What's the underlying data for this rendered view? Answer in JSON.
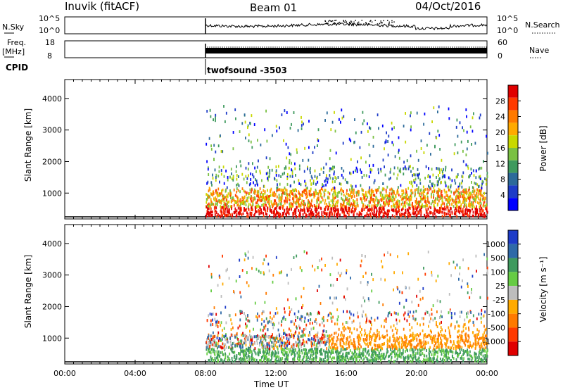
{
  "header": {
    "station": "Inuvik (fitACF)",
    "beam": "Beam 01",
    "date": "04/Oct/2016"
  },
  "top_panels": {
    "nsky_label": "N.Sky",
    "nsky_ticks": [
      "10^5",
      "10^0"
    ],
    "nsearch_label": "N.Search",
    "freq_label": "Freq.",
    "freq_unit": "[MHz]",
    "freq_ticks": [
      "18",
      "8"
    ],
    "nave_label": "Nave",
    "nave_ticks": [
      "60",
      "0"
    ],
    "cpid_label": "CPID",
    "cpid_value": "twofsound -3503"
  },
  "chart_data": [
    {
      "type": "heatmap",
      "panel": "power",
      "ylabel": "Slant Range [km]",
      "yticks": [
        1000,
        2000,
        3000,
        4000
      ],
      "ylim": [
        180,
        4600
      ],
      "xlim": [
        0,
        24
      ],
      "data_start_hour": 8,
      "colorbar": {
        "label": "Power [dB]",
        "ticks": [
          "28",
          "24",
          "20",
          "16",
          "12",
          "8",
          "4"
        ],
        "colors": [
          "#e00000",
          "#ff3a00",
          "#ff7a00",
          "#ffaa00",
          "#c8d800",
          "#7ac043",
          "#3f9a5e",
          "#2c6a9a",
          "#1e3cc8",
          "#0000ff"
        ]
      }
    },
    {
      "type": "heatmap",
      "panel": "velocity",
      "ylabel": "Slant Range [km]",
      "yticks": [
        1000,
        2000,
        3000,
        4000
      ],
      "ylim": [
        180,
        4600
      ],
      "xlim": [
        0,
        24
      ],
      "data_start_hour": 8,
      "colorbar": {
        "label": "Velocity [m s⁻¹]",
        "ticks": [
          "1000",
          "500",
          "100",
          "25",
          "-25",
          "-100",
          "-500",
          "-1000"
        ],
        "colors": [
          "#1e3cc8",
          "#2f6aa8",
          "#3f9a5e",
          "#66cc44",
          "#bdbdbd",
          "#ffaa00",
          "#ff7a00",
          "#ff3a00",
          "#e00000"
        ]
      }
    }
  ],
  "xaxis": {
    "label": "Time UT",
    "ticks": [
      "00:00",
      "04:00",
      "08:00",
      "12:00",
      "16:00",
      "20:00",
      "00:00"
    ]
  }
}
